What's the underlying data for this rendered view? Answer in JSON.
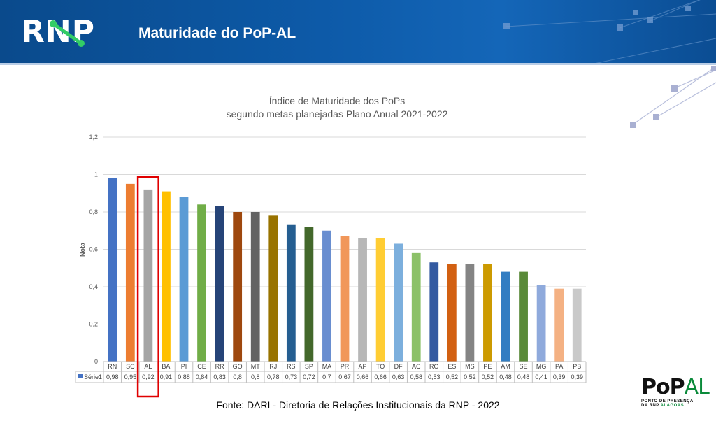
{
  "header": {
    "logo": "RNP",
    "title": "Maturidade do PoP-AL"
  },
  "chart_data": {
    "type": "bar",
    "title": "Índice de Maturidade dos PoPs",
    "subtitle": "segundo metas planejadas Plano Anual 2021-2022",
    "ylabel": "Nota",
    "xlabel": "",
    "ylim": [
      0,
      1.2
    ],
    "yticks": [
      "0",
      "0,2",
      "0,4",
      "0,6",
      "0,8",
      "1",
      "1,2"
    ],
    "grid": true,
    "data_table": true,
    "highlight_category": "AL",
    "categories": [
      "RN",
      "SC",
      "AL",
      "BA",
      "PI",
      "CE",
      "RR",
      "GO",
      "MT",
      "RJ",
      "RS",
      "SP",
      "MA",
      "PR",
      "AP",
      "TO",
      "DF",
      "AC",
      "RO",
      "ES",
      "MS",
      "PE",
      "AM",
      "SE",
      "MG",
      "PA",
      "PB"
    ],
    "value_labels": [
      "0,98",
      "0,95",
      "0,92",
      "0,91",
      "0,88",
      "0,84",
      "0,83",
      "0,8",
      "0,8",
      "0,78",
      "0,73",
      "0,72",
      "0,7",
      "0,67",
      "0,66",
      "0,66",
      "0,63",
      "0,58",
      "0,53",
      "0,52",
      "0,52",
      "0,52",
      "0,48",
      "0,48",
      "0,41",
      "0,39",
      "0,39"
    ],
    "series": [
      {
        "name": "Série1",
        "values": [
          0.98,
          0.95,
          0.92,
          0.91,
          0.88,
          0.84,
          0.83,
          0.8,
          0.8,
          0.78,
          0.73,
          0.72,
          0.7,
          0.67,
          0.66,
          0.66,
          0.63,
          0.58,
          0.53,
          0.52,
          0.52,
          0.52,
          0.48,
          0.48,
          0.41,
          0.39,
          0.39
        ]
      }
    ],
    "colors": [
      "#4472c4",
      "#ed7d31",
      "#a5a5a5",
      "#ffc000",
      "#5b9bd5",
      "#70ad47",
      "#264478",
      "#9e480e",
      "#636363",
      "#997300",
      "#255e91",
      "#43682b",
      "#698ed0",
      "#f1975a",
      "#b7b7b7",
      "#ffcd33",
      "#7cafdd",
      "#8cc168",
      "#335aa1",
      "#d26012",
      "#848484",
      "#cc9a00",
      "#327dc2",
      "#5a8a39",
      "#8faadc",
      "#f4b183",
      "#c9c9c9"
    ],
    "series_marker_color": "#4472c4",
    "highlight_color": "#e00000"
  },
  "footer": {
    "source": "Fonte: DARI - Diretoria de Relações Institucionais da RNP - 2022",
    "logo_main": "PoP",
    "logo_accent": "AL",
    "logo_sub1": "PONTO DE PRESENÇA",
    "logo_sub2_a": "DA RNP ",
    "logo_sub2_b": "ALAGOAS"
  }
}
